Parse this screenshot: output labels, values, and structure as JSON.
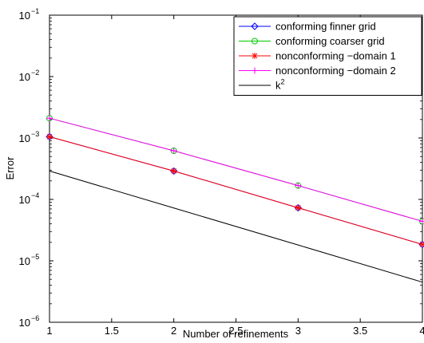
{
  "chart_data": {
    "type": "line",
    "xlabel": "Number of refinements",
    "ylabel": "Error",
    "xscale": "linear",
    "yscale": "log",
    "xlim": [
      1,
      4
    ],
    "ylim": [
      1e-06,
      0.1
    ],
    "x": [
      1,
      2,
      3,
      4
    ],
    "grid": false,
    "legend_position": "top-right",
    "xticks": [
      {
        "value": 1,
        "label": "1"
      },
      {
        "value": 1.5,
        "label": "1.5"
      },
      {
        "value": 2,
        "label": "2"
      },
      {
        "value": 2.5,
        "label": "2.5"
      },
      {
        "value": 3,
        "label": "3"
      },
      {
        "value": 3.5,
        "label": "3.5"
      },
      {
        "value": 4,
        "label": "4"
      }
    ],
    "yticks": [
      {
        "value": 1e-06,
        "base": "10",
        "exp": "−6"
      },
      {
        "value": 1e-05,
        "base": "10",
        "exp": "−5"
      },
      {
        "value": 0.0001,
        "base": "10",
        "exp": "−4"
      },
      {
        "value": 0.001,
        "base": "10",
        "exp": "−3"
      },
      {
        "value": 0.01,
        "base": "10",
        "exp": "−2"
      },
      {
        "value": 0.1,
        "base": "10",
        "exp": "−1"
      }
    ],
    "series": [
      {
        "name": "conforming finner grid",
        "color": "#0000ff",
        "marker": "diamond",
        "values": [
          0.00105,
          0.00029,
          7.3e-05,
          1.85e-05
        ]
      },
      {
        "name": "conforming coarser grid",
        "color": "#00cc00",
        "marker": "circle",
        "values": [
          0.0021,
          0.00062,
          0.000168,
          4.4e-05
        ]
      },
      {
        "name": "nonconforming −domain 1",
        "color": "#ff0000",
        "marker": "asterisk",
        "values": [
          0.00105,
          0.00029,
          7.3e-05,
          1.85e-05
        ]
      },
      {
        "name": "nonconforming −domain 2",
        "color": "#ff00ff",
        "marker": "plus",
        "values": [
          0.0021,
          0.00062,
          0.000168,
          4.4e-05
        ]
      },
      {
        "name": "k",
        "name_sup": "2",
        "color": "#000000",
        "marker": "none",
        "values": [
          0.00029,
          7.25e-05,
          1.81e-05,
          4.5e-06
        ]
      }
    ]
  }
}
